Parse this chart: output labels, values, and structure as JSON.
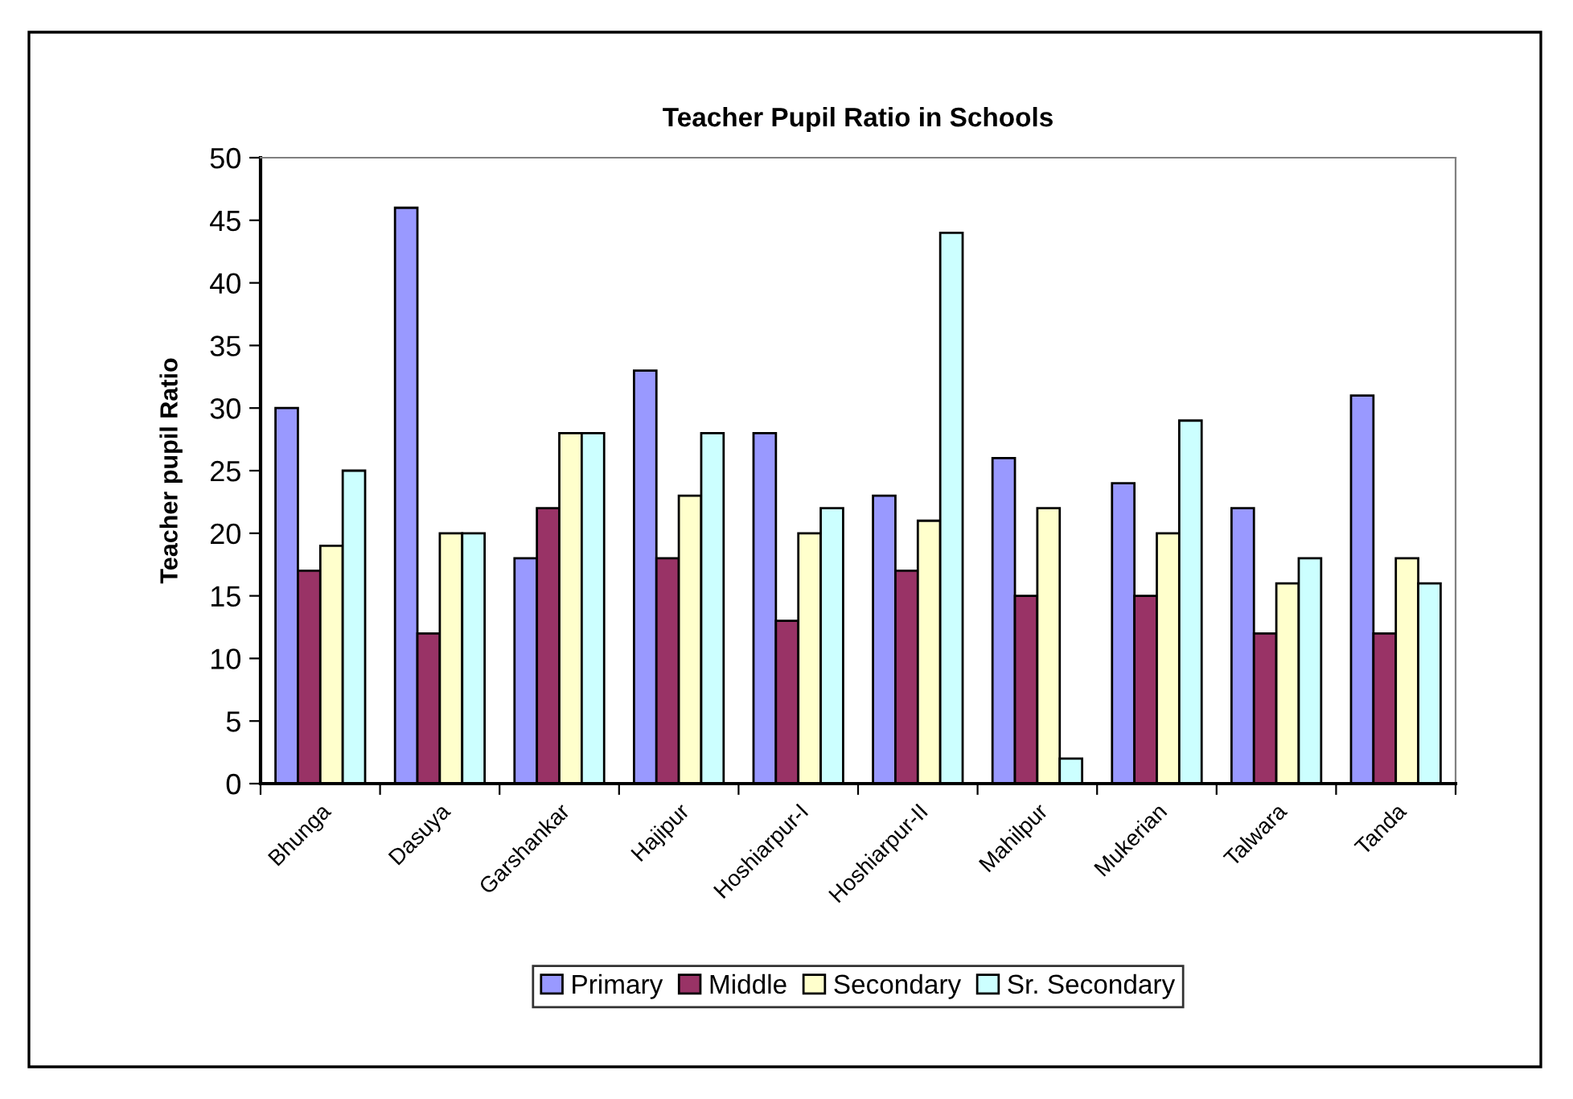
{
  "chart_data": {
    "type": "bar",
    "title": "Teacher Pupil Ratio in Schools",
    "ylabel": "Teacher pupil Ratio",
    "categories": [
      "Bhunga",
      "Dasuya",
      "Garshankar",
      "Hajipur",
      "Hoshiarpur-I",
      "Hoshiarpur-II",
      "Mahilpur",
      "Mukerian",
      "Talwara",
      "Tanda"
    ],
    "series": [
      {
        "name": "Primary",
        "color": "#9999ff",
        "values": [
          30,
          46,
          18,
          33,
          28,
          23,
          26,
          24,
          22,
          31
        ]
      },
      {
        "name": "Middle",
        "color": "#993366",
        "values": [
          17,
          12,
          22,
          18,
          13,
          17,
          15,
          15,
          12,
          12
        ]
      },
      {
        "name": "Secondary",
        "color": "#ffffcc",
        "values": [
          19,
          20,
          28,
          23,
          20,
          21,
          22,
          20,
          16,
          18
        ]
      },
      {
        "name": "Sr. Secondary",
        "color": "#ccffff",
        "values": [
          25,
          20,
          28,
          28,
          22,
          44,
          2,
          29,
          18,
          16
        ]
      }
    ],
    "ylim": [
      0,
      50
    ],
    "yticks": [
      0,
      5,
      10,
      15,
      20,
      25,
      30,
      35,
      40,
      45,
      50
    ],
    "grid": false,
    "legend": "bottom"
  }
}
